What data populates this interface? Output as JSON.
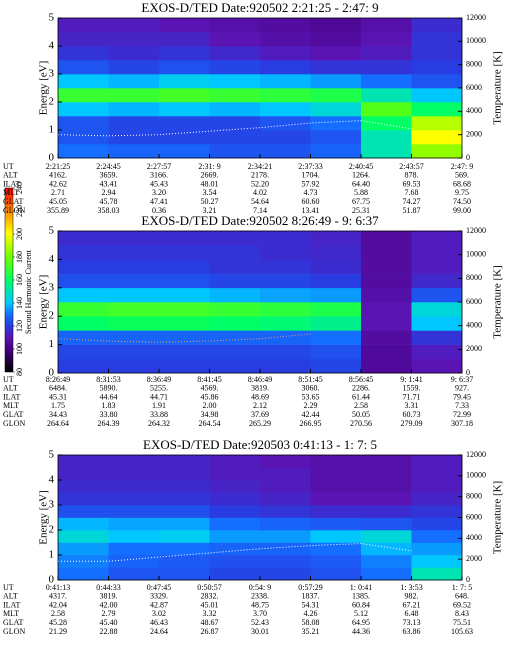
{
  "colorbar": {
    "label": "Second Harmonic Current",
    "lim": [
      80,
      240
    ],
    "ticks": [
      80,
      100,
      120,
      140,
      160,
      180,
      200,
      220,
      240
    ]
  },
  "chart_data": [
    {
      "type": "heatmap",
      "title": "EXOS-D/TED   Date:920502  2:21:25 - 2:47: 9",
      "ylabel": "Energy [eV]",
      "y2label": "Temperature [K]",
      "xlabel": "UT",
      "ylim": [
        0,
        5
      ],
      "yticks": [
        0,
        1,
        2,
        3,
        4,
        5
      ],
      "y2lim": [
        0,
        12000
      ],
      "y2ticks": [
        0,
        2000,
        4000,
        6000,
        8000,
        10000,
        12000
      ],
      "categories": [
        "2:21:25",
        "2:24:45",
        "2:27:57",
        "2:31: 9",
        "2:34:21",
        "2:37:33",
        "2:40:45",
        "2:43:57",
        "2:47: 9"
      ],
      "z": [
        [
          130,
          128,
          128,
          125,
          125,
          128,
          150,
          185
        ],
        [
          125,
          122,
          122,
          122,
          122,
          125,
          150,
          200
        ],
        [
          125,
          122,
          122,
          122,
          125,
          130,
          160,
          190
        ],
        [
          140,
          138,
          140,
          138,
          140,
          145,
          175,
          160
        ],
        [
          170,
          170,
          172,
          170,
          168,
          165,
          150,
          140
        ],
        [
          140,
          138,
          142,
          140,
          138,
          135,
          130,
          125
        ],
        [
          125,
          122,
          124,
          122,
          120,
          118,
          118,
          120
        ],
        [
          118,
          116,
          118,
          115,
          112,
          110,
          112,
          118
        ],
        [
          114,
          114,
          114,
          110,
          108,
          106,
          110,
          118
        ],
        [
          112,
          112,
          110,
          108,
          106,
          104,
          108,
          116
        ]
      ],
      "series": [
        {
          "name": "Temperature",
          "color": "#ffffff",
          "axis": "y2",
          "values": [
            2000,
            1900,
            2000,
            2300,
            2600,
            3000,
            3200,
            2500,
            null
          ]
        }
      ],
      "ephemeris": [
        {
          "name": "ALT",
          "values": [
            "4162.",
            "3659.",
            "3166.",
            "2669.",
            "2178.",
            "1704.",
            "1264.",
            "878.",
            "569."
          ]
        },
        {
          "name": "ILAT",
          "values": [
            "42.62",
            "43.41",
            "45.43",
            "48.01",
            "52.20",
            "57.92",
            "64.40",
            "69.53",
            "68.68"
          ]
        },
        {
          "name": "MLT",
          "values": [
            "2.71",
            "2.94",
            "3.20",
            "3.54",
            "4.02",
            "4.73",
            "5.88",
            "7.68",
            "9.75"
          ]
        },
        {
          "name": "GLAT",
          "values": [
            "45.05",
            "45.78",
            "47.41",
            "50.27",
            "54.64",
            "60.60",
            "67.75",
            "74.27",
            "74.50"
          ]
        },
        {
          "name": "GLON",
          "values": [
            "355.89",
            "358.03",
            "0.36",
            "3.21",
            "7.14",
            "13.41",
            "25.31",
            "51.87",
            "99.00"
          ]
        }
      ]
    },
    {
      "type": "heatmap",
      "title": "EXOS-D/TED   Date:920502  8:26:49 - 9: 6:37",
      "ylabel": "Energy [eV]",
      "y2label": "Temperature [K]",
      "xlabel": "UT",
      "ylim": [
        0,
        5
      ],
      "yticks": [
        0,
        1,
        2,
        3,
        4,
        5
      ],
      "y2lim": [
        0,
        12000
      ],
      "y2ticks": [
        0,
        2000,
        4000,
        6000,
        8000,
        10000,
        12000
      ],
      "categories": [
        "8:26:49",
        "8:31:53",
        "8:36:49",
        "8:41:45",
        "8:46:49",
        "8:51:45",
        "8:56:45",
        "9: 1:41",
        "9: 6:37"
      ],
      "z": [
        [
          120,
          120,
          120,
          120,
          120,
          122,
          105,
          110
        ],
        [
          122,
          122,
          122,
          122,
          122,
          124,
          105,
          112
        ],
        [
          128,
          128,
          128,
          128,
          128,
          130,
          106,
          118
        ],
        [
          160,
          162,
          162,
          160,
          158,
          155,
          110,
          140
        ],
        [
          170,
          172,
          172,
          170,
          168,
          165,
          110,
          145
        ],
        [
          140,
          140,
          140,
          138,
          136,
          135,
          108,
          125
        ],
        [
          124,
          124,
          124,
          122,
          122,
          120,
          106,
          115
        ],
        [
          120,
          120,
          120,
          118,
          118,
          116,
          106,
          112
        ],
        [
          118,
          118,
          118,
          118,
          116,
          115,
          106,
          112
        ],
        [
          116,
          116,
          116,
          116,
          116,
          114,
          106,
          112
        ]
      ],
      "series": [
        {
          "name": "Temperature",
          "color": "#ff9966",
          "axis": "y2",
          "values": [
            2900,
            2700,
            2600,
            2700,
            2900,
            3300,
            null,
            null,
            null
          ]
        }
      ],
      "ephemeris": [
        {
          "name": "ALT",
          "values": [
            "6484.",
            "5890.",
            "5255.",
            "4569.",
            "3819.",
            "3060.",
            "2286.",
            "1559.",
            "927."
          ]
        },
        {
          "name": "ILAT",
          "values": [
            "45.31",
            "44.64",
            "44.71",
            "45.86",
            "48.69",
            "53.65",
            "61.44",
            "71.71",
            "79.45"
          ]
        },
        {
          "name": "MLT",
          "values": [
            "1.75",
            "1.83",
            "1.91",
            "2.00",
            "2.12",
            "2.29",
            "2.58",
            "3.31",
            "7.33"
          ]
        },
        {
          "name": "GLAT",
          "values": [
            "34.43",
            "33.80",
            "33.88",
            "34.98",
            "37.69",
            "42.44",
            "50.05",
            "60.73",
            "72.99"
          ]
        },
        {
          "name": "GLON",
          "values": [
            "264.64",
            "264.39",
            "264.32",
            "264.54",
            "265.29",
            "266.95",
            "270.56",
            "279.09",
            "307.18"
          ]
        }
      ]
    },
    {
      "type": "heatmap",
      "title": "EXOS-D/TED   Date:920503  0:41:13 - 1: 7: 5",
      "ylabel": "Energy [eV]",
      "y2label": "Temperature [K]",
      "xlabel": "UT",
      "ylim": [
        0,
        5
      ],
      "yticks": [
        0,
        1,
        2,
        3,
        4,
        5
      ],
      "y2lim": [
        0,
        12000
      ],
      "y2ticks": [
        0,
        2000,
        4000,
        6000,
        8000,
        10000,
        12000
      ],
      "categories": [
        "0:41:13",
        "0:44:33",
        "0:47:45",
        "0:50:57",
        "0:54: 9",
        "0:57:29",
        "1: 0:41",
        "1: 3:53",
        "1: 7: 5"
      ],
      "z": [
        [
          130,
          125,
          125,
          122,
          122,
          124,
          130,
          150
        ],
        [
          132,
          128,
          126,
          124,
          124,
          126,
          132,
          140
        ],
        [
          135,
          130,
          130,
          128,
          128,
          130,
          138,
          135
        ],
        [
          145,
          140,
          142,
          135,
          135,
          140,
          145,
          130
        ],
        [
          138,
          136,
          136,
          130,
          128,
          126,
          125,
          122
        ],
        [
          124,
          124,
          124,
          120,
          118,
          116,
          116,
          118
        ],
        [
          118,
          118,
          118,
          116,
          114,
          110,
          110,
          114
        ],
        [
          116,
          116,
          116,
          114,
          112,
          108,
          108,
          112
        ],
        [
          114,
          114,
          114,
          112,
          112,
          108,
          108,
          112
        ],
        [
          114,
          114,
          114,
          112,
          110,
          108,
          108,
          112
        ]
      ],
      "series": [
        {
          "name": "Temperature",
          "color": "#ffffff",
          "axis": "y2",
          "values": [
            1800,
            1800,
            2200,
            2600,
            3000,
            3300,
            3500,
            2800,
            null
          ]
        }
      ],
      "ephemeris": [
        {
          "name": "ALT",
          "values": [
            "4317.",
            "3819.",
            "3329.",
            "2832.",
            "2338.",
            "1837.",
            "1385.",
            "982.",
            "648."
          ]
        },
        {
          "name": "ILAT",
          "values": [
            "42.04",
            "42.00",
            "42.87",
            "45.01",
            "48.75",
            "54.31",
            "60.84",
            "67.21",
            "69.52"
          ]
        },
        {
          "name": "MLT",
          "values": [
            "2.58",
            "2.79",
            "3.02",
            "3.32",
            "3.70",
            "4.26",
            "5.12",
            "6.48",
            "8.43"
          ]
        },
        {
          "name": "GLAT",
          "values": [
            "45.28",
            "45.40",
            "46.43",
            "48.67",
            "52.43",
            "58.08",
            "64.95",
            "73.13",
            "75.51"
          ]
        },
        {
          "name": "GLON",
          "values": [
            "21.29",
            "22.88",
            "24.64",
            "26.87",
            "30.01",
            "35.21",
            "44.36",
            "63.86",
            "105.63"
          ]
        }
      ]
    }
  ]
}
